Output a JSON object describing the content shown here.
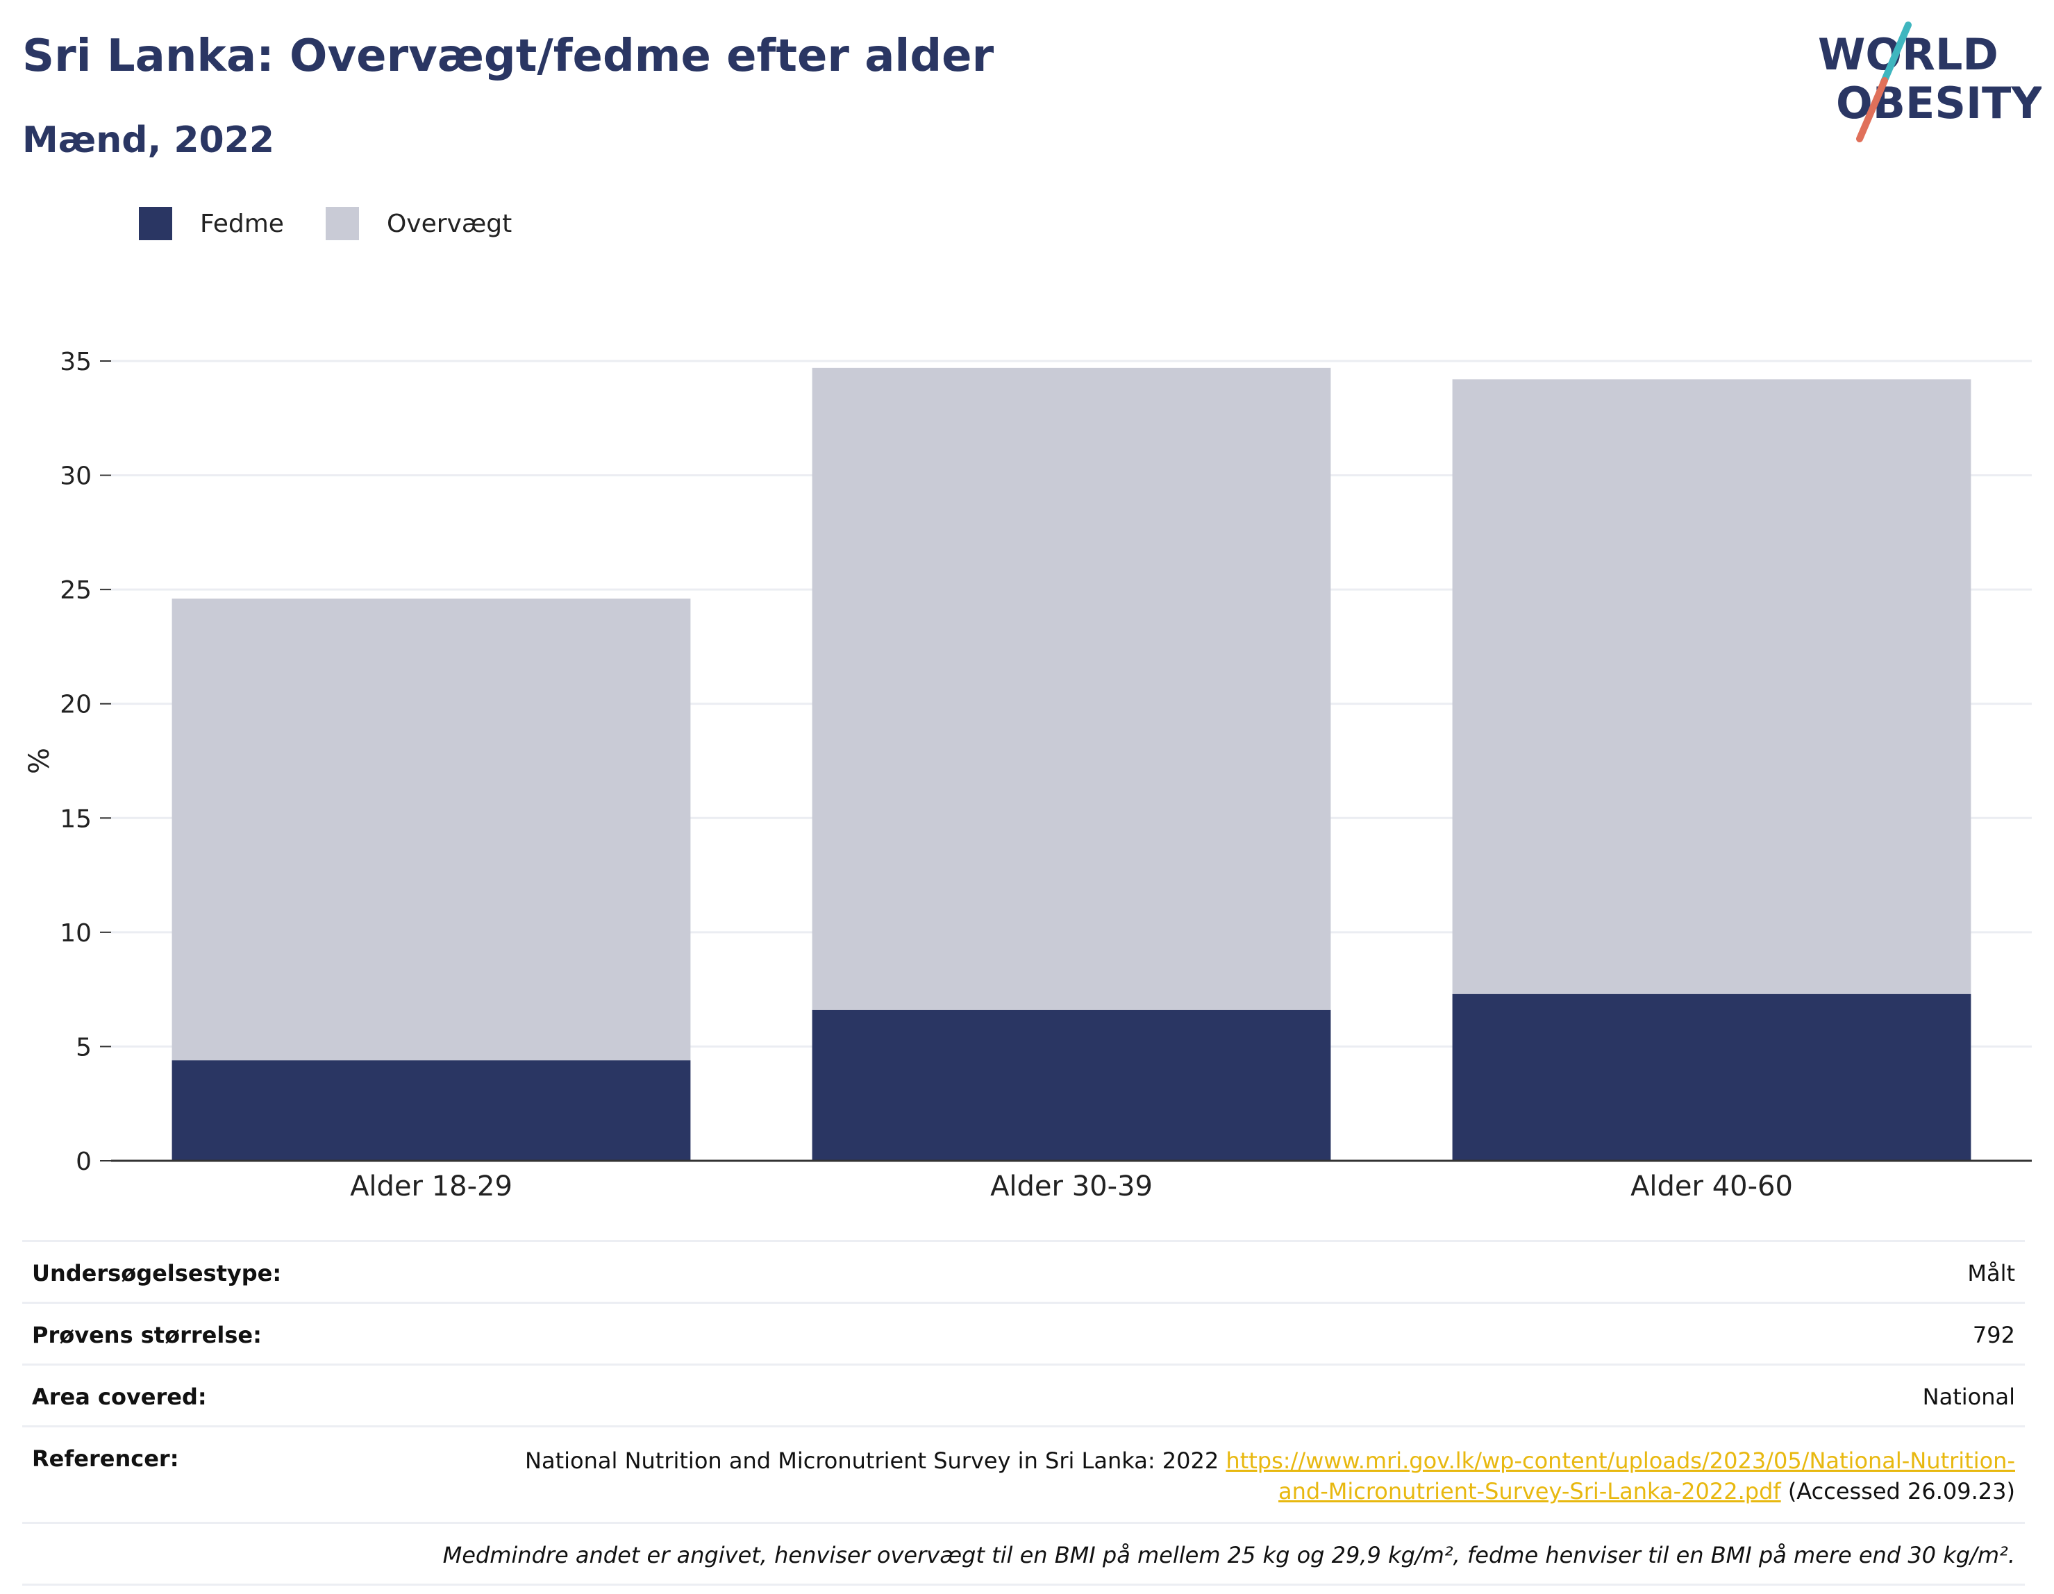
{
  "header": {
    "title": "Sri Lanka: Overvægt/fedme efter alder",
    "subtitle": "Mænd, 2022"
  },
  "logo": {
    "line1": "WORLD",
    "line2": "OBESITY",
    "colors": {
      "text": "#2a3663",
      "slash_top": "#3fb6bf",
      "slash_bottom": "#e0705a"
    }
  },
  "legend": [
    {
      "label": "Fedme",
      "color": "#2a3663"
    },
    {
      "label": "Overvægt",
      "color": "#c9cbd6"
    }
  ],
  "chart_data": {
    "type": "bar",
    "stacked": true,
    "categories": [
      "Alder 18-29",
      "Alder 30-39",
      "Alder 40-60"
    ],
    "series": [
      {
        "name": "Fedme",
        "color": "#2a3663",
        "values": [
          4.4,
          6.6,
          7.3
        ]
      },
      {
        "name": "Overvægt",
        "color": "#c9cbd6",
        "values": [
          20.2,
          28.1,
          26.9
        ]
      }
    ],
    "ylabel": "%",
    "ylim": [
      0,
      35
    ],
    "yticks": [
      0,
      5,
      10,
      15,
      20,
      25,
      30,
      35
    ],
    "grid": true,
    "legend_position": "top-left"
  },
  "info": {
    "survey_type_label": "Undersøgelsestype:",
    "survey_type_value": "Målt",
    "sample_size_label": "Prøvens størrelse:",
    "sample_size_value": "792",
    "area_label": "Area covered:",
    "area_value": "National",
    "references_label": "Referencer:",
    "references_text": "National Nutrition and Micronutrient Survey in Sri Lanka: 2022 ",
    "references_link": "https://www.mri.gov.lk/wp-content/uploads/2023/05/National-Nutrition-and-Micronutrient-Survey-Sri-Lanka-2022.pdf",
    "references_accessed": " (Accessed 26.09.23)",
    "footnote": "Medmindre andet er angivet, henviser overvægt til en BMI på mellem 25 kg og 29,9 kg/m², fedme henviser til en BMI på mere end 30 kg/m²."
  }
}
